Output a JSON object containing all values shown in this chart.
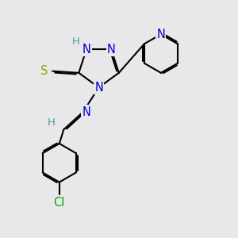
{
  "bg_color": "#e8e8ea",
  "atom_colors": {
    "C": "#000000",
    "N": "#0000cc",
    "S": "#999900",
    "Cl": "#00aa00",
    "H": "#4a9a9a"
  },
  "bond_color": "#000000",
  "bond_width": 1.5,
  "font_size_atom": 10.5
}
